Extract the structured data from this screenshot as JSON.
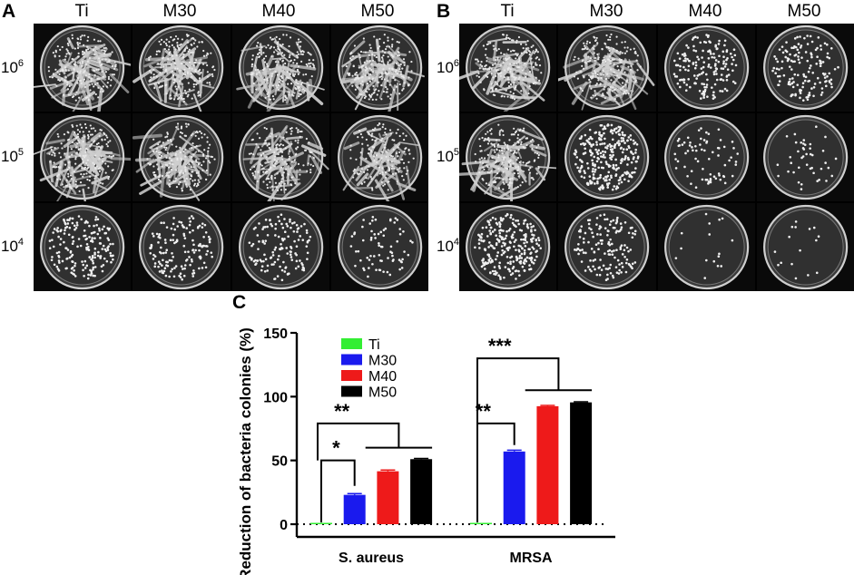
{
  "panels": {
    "A": {
      "letter": "A",
      "columns": [
        "Ti",
        "M30",
        "M40",
        "M50"
      ],
      "rows": [
        {
          "base": "10",
          "exp": "6"
        },
        {
          "base": "10",
          "exp": "5"
        },
        {
          "base": "10",
          "exp": "4"
        }
      ],
      "density": [
        [
          1,
          1,
          1,
          1
        ],
        [
          1,
          1,
          0.85,
          0.75
        ],
        [
          0.35,
          0.28,
          0.26,
          0.14
        ]
      ]
    },
    "B": {
      "letter": "B",
      "columns": [
        "Ti",
        "M30",
        "M40",
        "M50"
      ],
      "rows": [
        {
          "base": "10",
          "exp": "6"
        },
        {
          "base": "10",
          "exp": "5"
        },
        {
          "base": "10",
          "exp": "4"
        }
      ],
      "density": [
        [
          1,
          1,
          0.32,
          0.28
        ],
        [
          1,
          0.55,
          0.14,
          0.08
        ],
        [
          0.5,
          0.28,
          0.03,
          0.03
        ]
      ]
    },
    "C": {
      "letter": "C"
    }
  },
  "chart_data": {
    "type": "bar",
    "ylabel": "Reduction of bacteria colonies (%)",
    "ylim": [
      0,
      150
    ],
    "yticks": [
      0,
      50,
      100,
      150
    ],
    "categories": [
      "S. aureus",
      "MRSA"
    ],
    "series": [
      {
        "name": "Ti",
        "color": "#33ee33",
        "values": [
          0,
          0
        ],
        "errors": [
          0,
          0
        ]
      },
      {
        "name": "M30",
        "color": "#1a1aee",
        "values": [
          23,
          57
        ],
        "errors": [
          1,
          1
        ]
      },
      {
        "name": "M40",
        "color": "#ee1a1a",
        "values": [
          41.5,
          92.5
        ],
        "errors": [
          1,
          0.6
        ]
      },
      {
        "name": "M50",
        "color": "#000000",
        "values": [
          51,
          95.5
        ],
        "errors": [
          0.5,
          0.5
        ]
      }
    ],
    "reference_line": 0,
    "legend_position": "top-left",
    "significance": [
      {
        "category": "S. aureus",
        "label": "*"
      },
      {
        "category": "S. aureus",
        "label": "**"
      },
      {
        "category": "MRSA",
        "label": "**"
      },
      {
        "category": "MRSA",
        "label": "***"
      }
    ]
  }
}
